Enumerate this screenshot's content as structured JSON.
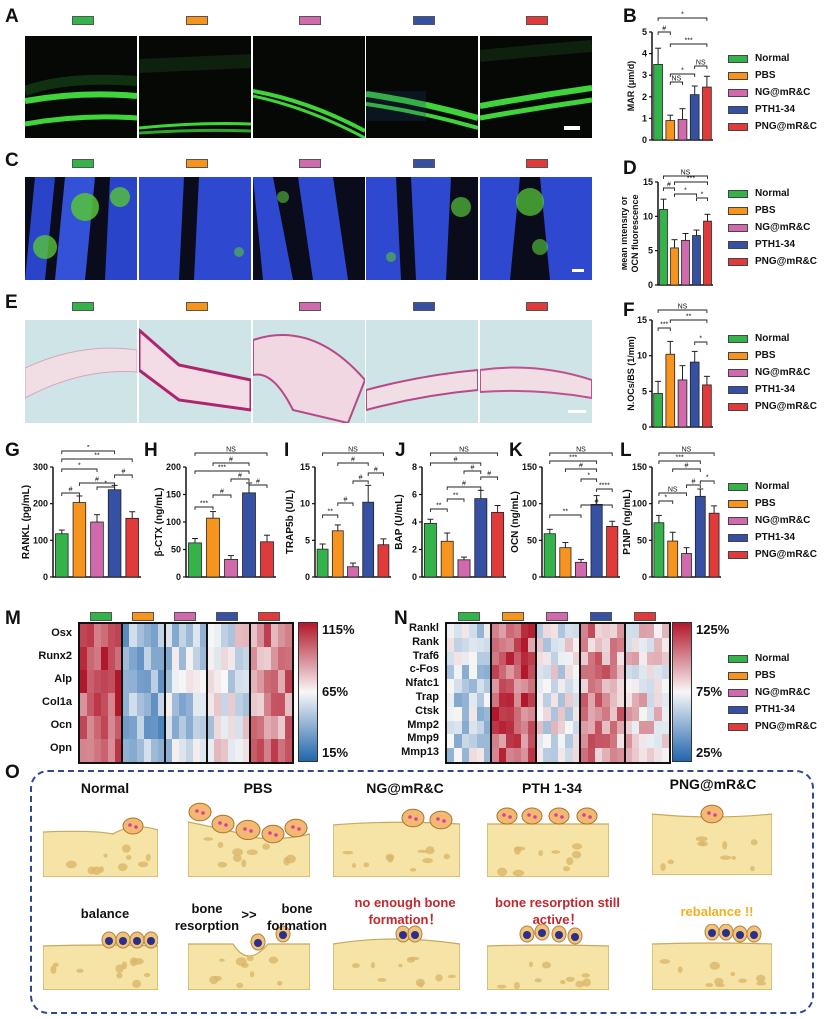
{
  "panel_labels": {
    "A": "A",
    "B": "B",
    "C": "C",
    "D": "D",
    "E": "E",
    "F": "F",
    "G": "G",
    "H": "H",
    "I": "I",
    "J": "J",
    "K": "K",
    "L": "L",
    "M": "M",
    "N": "N",
    "O": "O"
  },
  "groups": [
    "Normal",
    "PBS",
    "NG@mR&C",
    "PTH1-34",
    "PNG@mR&C"
  ],
  "colors": {
    "Normal": "#33b34a",
    "PBS": "#f7941d",
    "NG@mR&C": "#d06aad",
    "PTH1-34": "#3651a3",
    "PNG@mR&C": "#e03a3a"
  },
  "chart_data": [
    {
      "id": "B",
      "type": "bar",
      "ylabel": "MAR (μm/d)",
      "ylim": [
        0,
        5
      ],
      "yticks": [
        "0",
        "1",
        "2",
        "3",
        "4",
        "5"
      ],
      "categories": [
        "Normal",
        "PBS",
        "NG@mR&C",
        "PTH1-34",
        "PNG@mR&C"
      ],
      "values": [
        3.5,
        0.9,
        0.95,
        2.1,
        2.45
      ],
      "errors": [
        0.75,
        0.25,
        0.5,
        0.4,
        0.5
      ],
      "annotations": [
        "*",
        "#",
        "***",
        "NS",
        "NS",
        "*"
      ],
      "legend": [
        "Normal",
        "PBS",
        "NG@mR&C",
        "PTH1-34",
        "PNG@mR&C"
      ]
    },
    {
      "id": "D",
      "type": "bar",
      "ylabel": "Mean intensity of OCN fluorescence",
      "ylim": [
        0,
        15
      ],
      "yticks": [
        "0",
        "5",
        "10",
        "15"
      ],
      "categories": [
        "Normal",
        "PBS",
        "NG@mR&C",
        "PTH1-34",
        "PNG@mR&C"
      ],
      "values": [
        11,
        5.4,
        6.5,
        7.2,
        9.3
      ],
      "errors": [
        1.5,
        1.2,
        1.0,
        0.8,
        1.0
      ],
      "annotations": [
        "NS",
        "#",
        "***",
        "*",
        "*"
      ],
      "legend": [
        "Normal",
        "PBS",
        "NG@mR&C",
        "PTH1-34",
        "PNG@mR&C"
      ]
    },
    {
      "id": "F",
      "type": "bar",
      "ylabel": "N.OCs/BS (1/mm)",
      "ylim": [
        0,
        15
      ],
      "yticks": [
        "0",
        "5",
        "10",
        "15"
      ],
      "categories": [
        "Normal",
        "PBS",
        "NG@mR&C",
        "PTH1-34",
        "PNG@mR&C"
      ],
      "values": [
        4.7,
        10.2,
        6.6,
        9.1,
        5.9
      ],
      "errors": [
        1.7,
        1.8,
        2.0,
        1.5,
        1.2
      ],
      "annotations": [
        "NS",
        "***",
        "**",
        "*"
      ],
      "legend": [
        "Normal",
        "PBS",
        "NG@mR&C",
        "PTH1-34",
        "PNG@mR&C"
      ]
    },
    {
      "id": "G",
      "type": "bar",
      "ylabel": "RANKL (pg/mL)",
      "ylim": [
        0,
        300
      ],
      "yticks": [
        "0",
        "100",
        "200",
        "300"
      ],
      "categories": [
        "Normal",
        "PBS",
        "NG@mR&C",
        "PTH1-34",
        "PNG@mR&C"
      ],
      "values": [
        118,
        203,
        150,
        238,
        160
      ],
      "errors": [
        10,
        18,
        20,
        12,
        18
      ],
      "annotations": [
        "*",
        "**",
        "*",
        "*",
        "#",
        "#",
        "#"
      ]
    },
    {
      "id": "H",
      "type": "bar",
      "ylabel": "β-CTX (ng/mL)",
      "ylim": [
        0,
        200
      ],
      "yticks": [
        "0",
        "50",
        "100",
        "150",
        "200"
      ],
      "categories": [
        "Normal",
        "PBS",
        "NG@mR&C",
        "PTH1-34",
        "PNG@mR&C"
      ],
      "values": [
        62,
        107,
        32,
        153,
        64
      ],
      "errors": [
        8,
        12,
        7,
        18,
        12
      ],
      "annotations": [
        "NS",
        "#",
        "***",
        "#",
        "***",
        "#",
        "#"
      ]
    },
    {
      "id": "I",
      "type": "bar",
      "ylabel": "TRAP5b (U/L)",
      "ylim": [
        0,
        15
      ],
      "yticks": [
        "0",
        "5",
        "10",
        "15"
      ],
      "categories": [
        "Normal",
        "PBS",
        "NG@mR&C",
        "PTH1-34",
        "PNG@mR&C"
      ],
      "values": [
        3.8,
        6.3,
        1.4,
        10.2,
        4.4
      ],
      "errors": [
        0.7,
        0.8,
        0.5,
        2.3,
        0.8
      ],
      "annotations": [
        "NS",
        "#",
        "#",
        "**",
        "#",
        "#"
      ]
    },
    {
      "id": "J",
      "type": "bar",
      "ylabel": "BAP (U/mL)",
      "ylim": [
        0,
        8
      ],
      "yticks": [
        "0",
        "2",
        "4",
        "6",
        "8"
      ],
      "categories": [
        "Normal",
        "PBS",
        "NG@mR&C",
        "PTH1-34",
        "PNG@mR&C"
      ],
      "values": [
        3.9,
        2.6,
        1.25,
        5.7,
        4.7
      ],
      "errors": [
        0.3,
        0.6,
        0.2,
        0.6,
        0.5
      ],
      "annotations": [
        "NS",
        "#",
        "#",
        "#",
        "**",
        "**",
        "#"
      ]
    },
    {
      "id": "K",
      "type": "bar",
      "ylabel": "OCN (ng/mL)",
      "ylim": [
        0,
        150
      ],
      "yticks": [
        "0",
        "50",
        "100",
        "150"
      ],
      "categories": [
        "Normal",
        "PBS",
        "NG@mR&C",
        "PTH1-34",
        "PNG@mR&C"
      ],
      "values": [
        59,
        40,
        20,
        99,
        69
      ],
      "errors": [
        6,
        7,
        4,
        12,
        7
      ],
      "annotations": [
        "NS",
        "***",
        "#",
        "*",
        "**",
        "#",
        "****"
      ]
    },
    {
      "id": "L",
      "type": "bar",
      "ylabel": "P1NP (ng/mL)",
      "ylim": [
        0,
        150
      ],
      "yticks": [
        "0",
        "50",
        "100",
        "150"
      ],
      "categories": [
        "Normal",
        "PBS",
        "NG@mR&C",
        "PTH1-34",
        "PNG@mR&C"
      ],
      "values": [
        74,
        49,
        32,
        110,
        87
      ],
      "errors": [
        10,
        12,
        8,
        10,
        10
      ],
      "annotations": [
        "NS",
        "***",
        "#",
        "NS",
        "*",
        "#",
        "*"
      ],
      "legend": [
        "Normal",
        "PBS",
        "NG@mR&C",
        "PTH1-34",
        "PNG@mR&C"
      ]
    },
    {
      "id": "M",
      "type": "heatmap",
      "rows": [
        "Osx",
        "Runx2",
        "Alp",
        "Col1a",
        "Ocn",
        "Opn"
      ],
      "colorbar": [
        "115%",
        "65%",
        "15%"
      ]
    },
    {
      "id": "N",
      "type": "heatmap",
      "rows": [
        "Rankl",
        "Rank",
        "Traf6",
        "c-Fos",
        "Nfatc1",
        "Trap",
        "Ctsk",
        "Mmp2",
        "Mmp9",
        "Mmp13"
      ],
      "colorbar": [
        "125%",
        "75%",
        "25%"
      ],
      "legend": [
        "Normal",
        "PBS",
        "NG@mR&C",
        "PTH1-34",
        "PNG@mR&C"
      ]
    }
  ],
  "schematic": {
    "titles": [
      "Normal",
      "PBS",
      "NG@mR&C",
      "PTH 1-34",
      "PNG@mR&C"
    ],
    "captions": {
      "normal": "balance",
      "pbs_left": "bone resorption",
      "pbs_mid": ">>",
      "pbs_right": "bone formation",
      "ng": "no enough bone formation！",
      "pth": "bone resorption still active！",
      "png": "rebalance !!"
    }
  }
}
